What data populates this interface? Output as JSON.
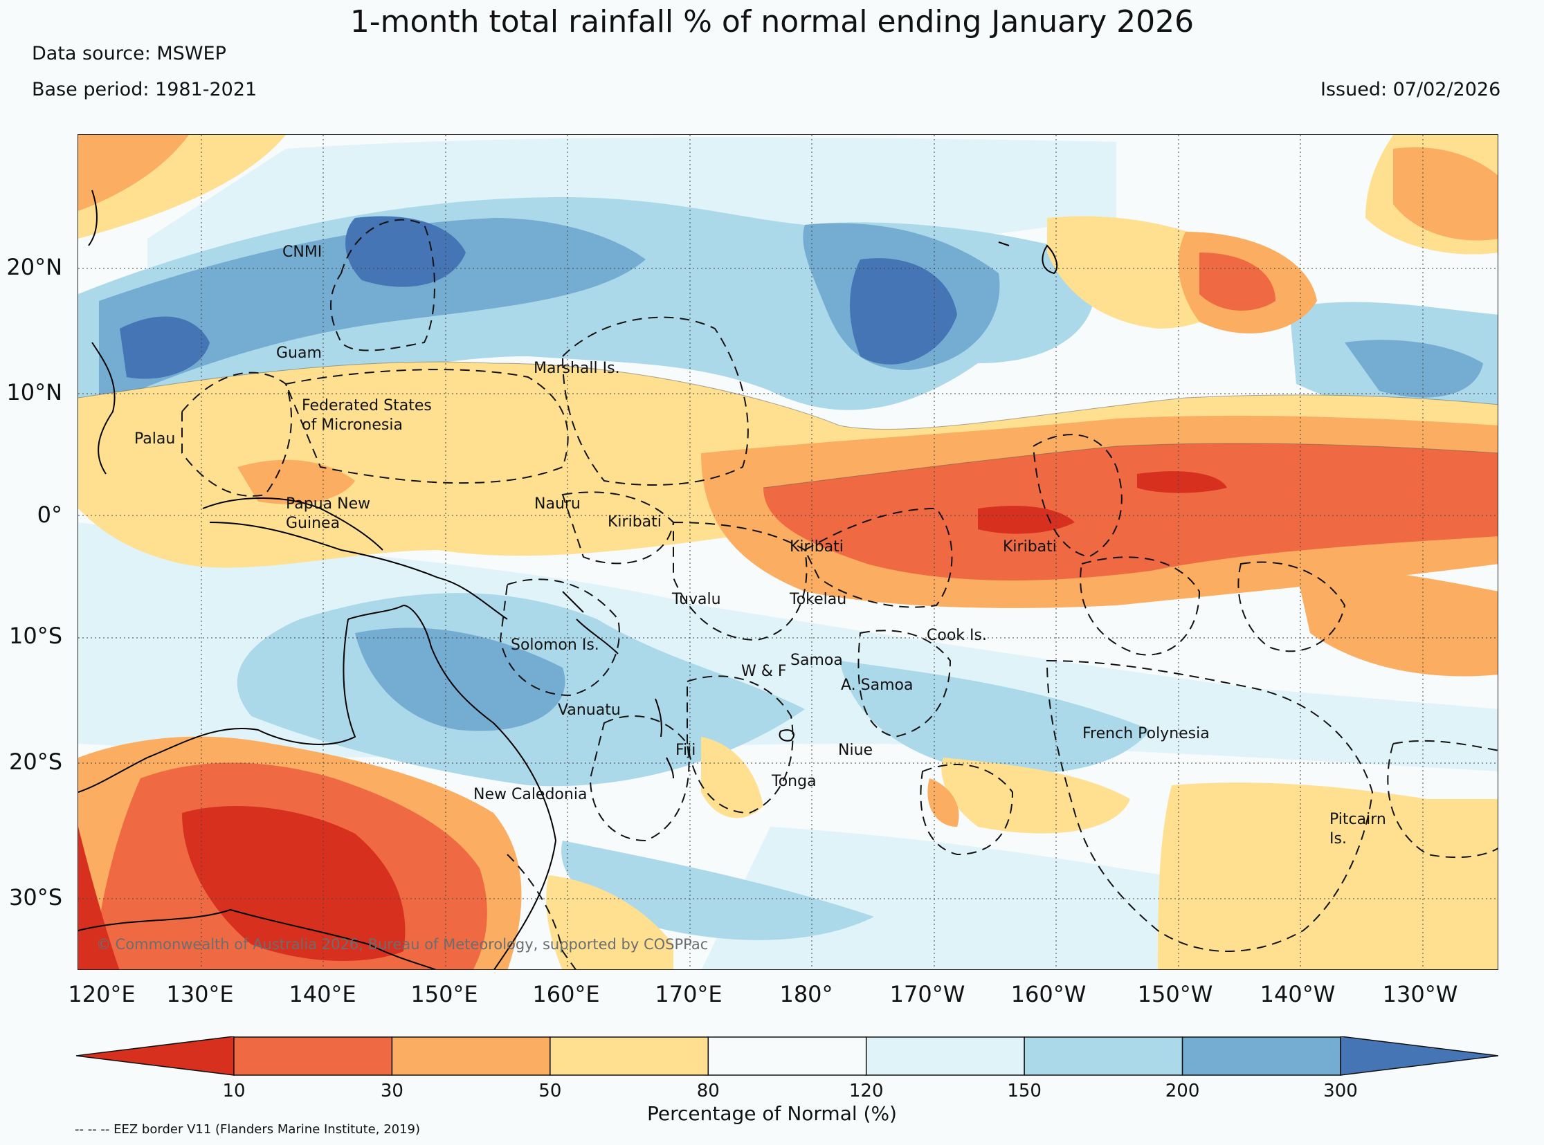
{
  "header": {
    "title": "1-month total rainfall % of normal ending January 2026",
    "data_source": "Data source: MSWEP",
    "base_period": "Base period: 1981-2021",
    "issued": "Issued: 07/02/2026"
  },
  "map": {
    "longitude_labels": [
      "120°E",
      "130°E",
      "140°E",
      "150°E",
      "160°E",
      "170°E",
      "180°",
      "170°W",
      "160°W",
      "150°W",
      "140°W",
      "130°W"
    ],
    "latitude_labels": [
      "20°N",
      "10°N",
      "0°",
      "10°S",
      "20°S",
      "30°S"
    ],
    "places": [
      {
        "text": "CNMI"
      },
      {
        "text": "Guam"
      },
      {
        "text": "Marshall Is."
      },
      {
        "text": "Federated States\nof Micronesia"
      },
      {
        "text": "Palau"
      },
      {
        "text": "Papua New\nGuinea"
      },
      {
        "text": "Nauru"
      },
      {
        "text": "Kiribati"
      },
      {
        "text": "Kiribati"
      },
      {
        "text": "Kiribati"
      },
      {
        "text": "Tuvalu"
      },
      {
        "text": "Tokelau"
      },
      {
        "text": "Solomon Is."
      },
      {
        "text": "Cook Is."
      },
      {
        "text": "Samoa"
      },
      {
        "text": "W & F"
      },
      {
        "text": "A. Samoa"
      },
      {
        "text": "Vanuatu"
      },
      {
        "text": "French Polynesia"
      },
      {
        "text": "Fiji"
      },
      {
        "text": "Niue"
      },
      {
        "text": "Tonga"
      },
      {
        "text": "New Caledonia"
      },
      {
        "text": "Pitcairn\nIs."
      }
    ],
    "copyright": "© Commonwealth of Australia 2026, Bureau of Meteorology, supported by COSPPac"
  },
  "colorbar": {
    "colors": [
      "#d7301f",
      "#ef6a43",
      "#fbad62",
      "#fee090",
      "#f7fbfc",
      "#e0f3f8",
      "#abd9e9",
      "#74add1",
      "#4575b4"
    ],
    "ticks": [
      "10",
      "30",
      "50",
      "80",
      "120",
      "150",
      "200",
      "300"
    ],
    "label": "Percentage of Normal (%)"
  },
  "legend": {
    "eez": "-- -- -- EEZ border V11 (Flanders Marine Institute, 2019)"
  }
}
